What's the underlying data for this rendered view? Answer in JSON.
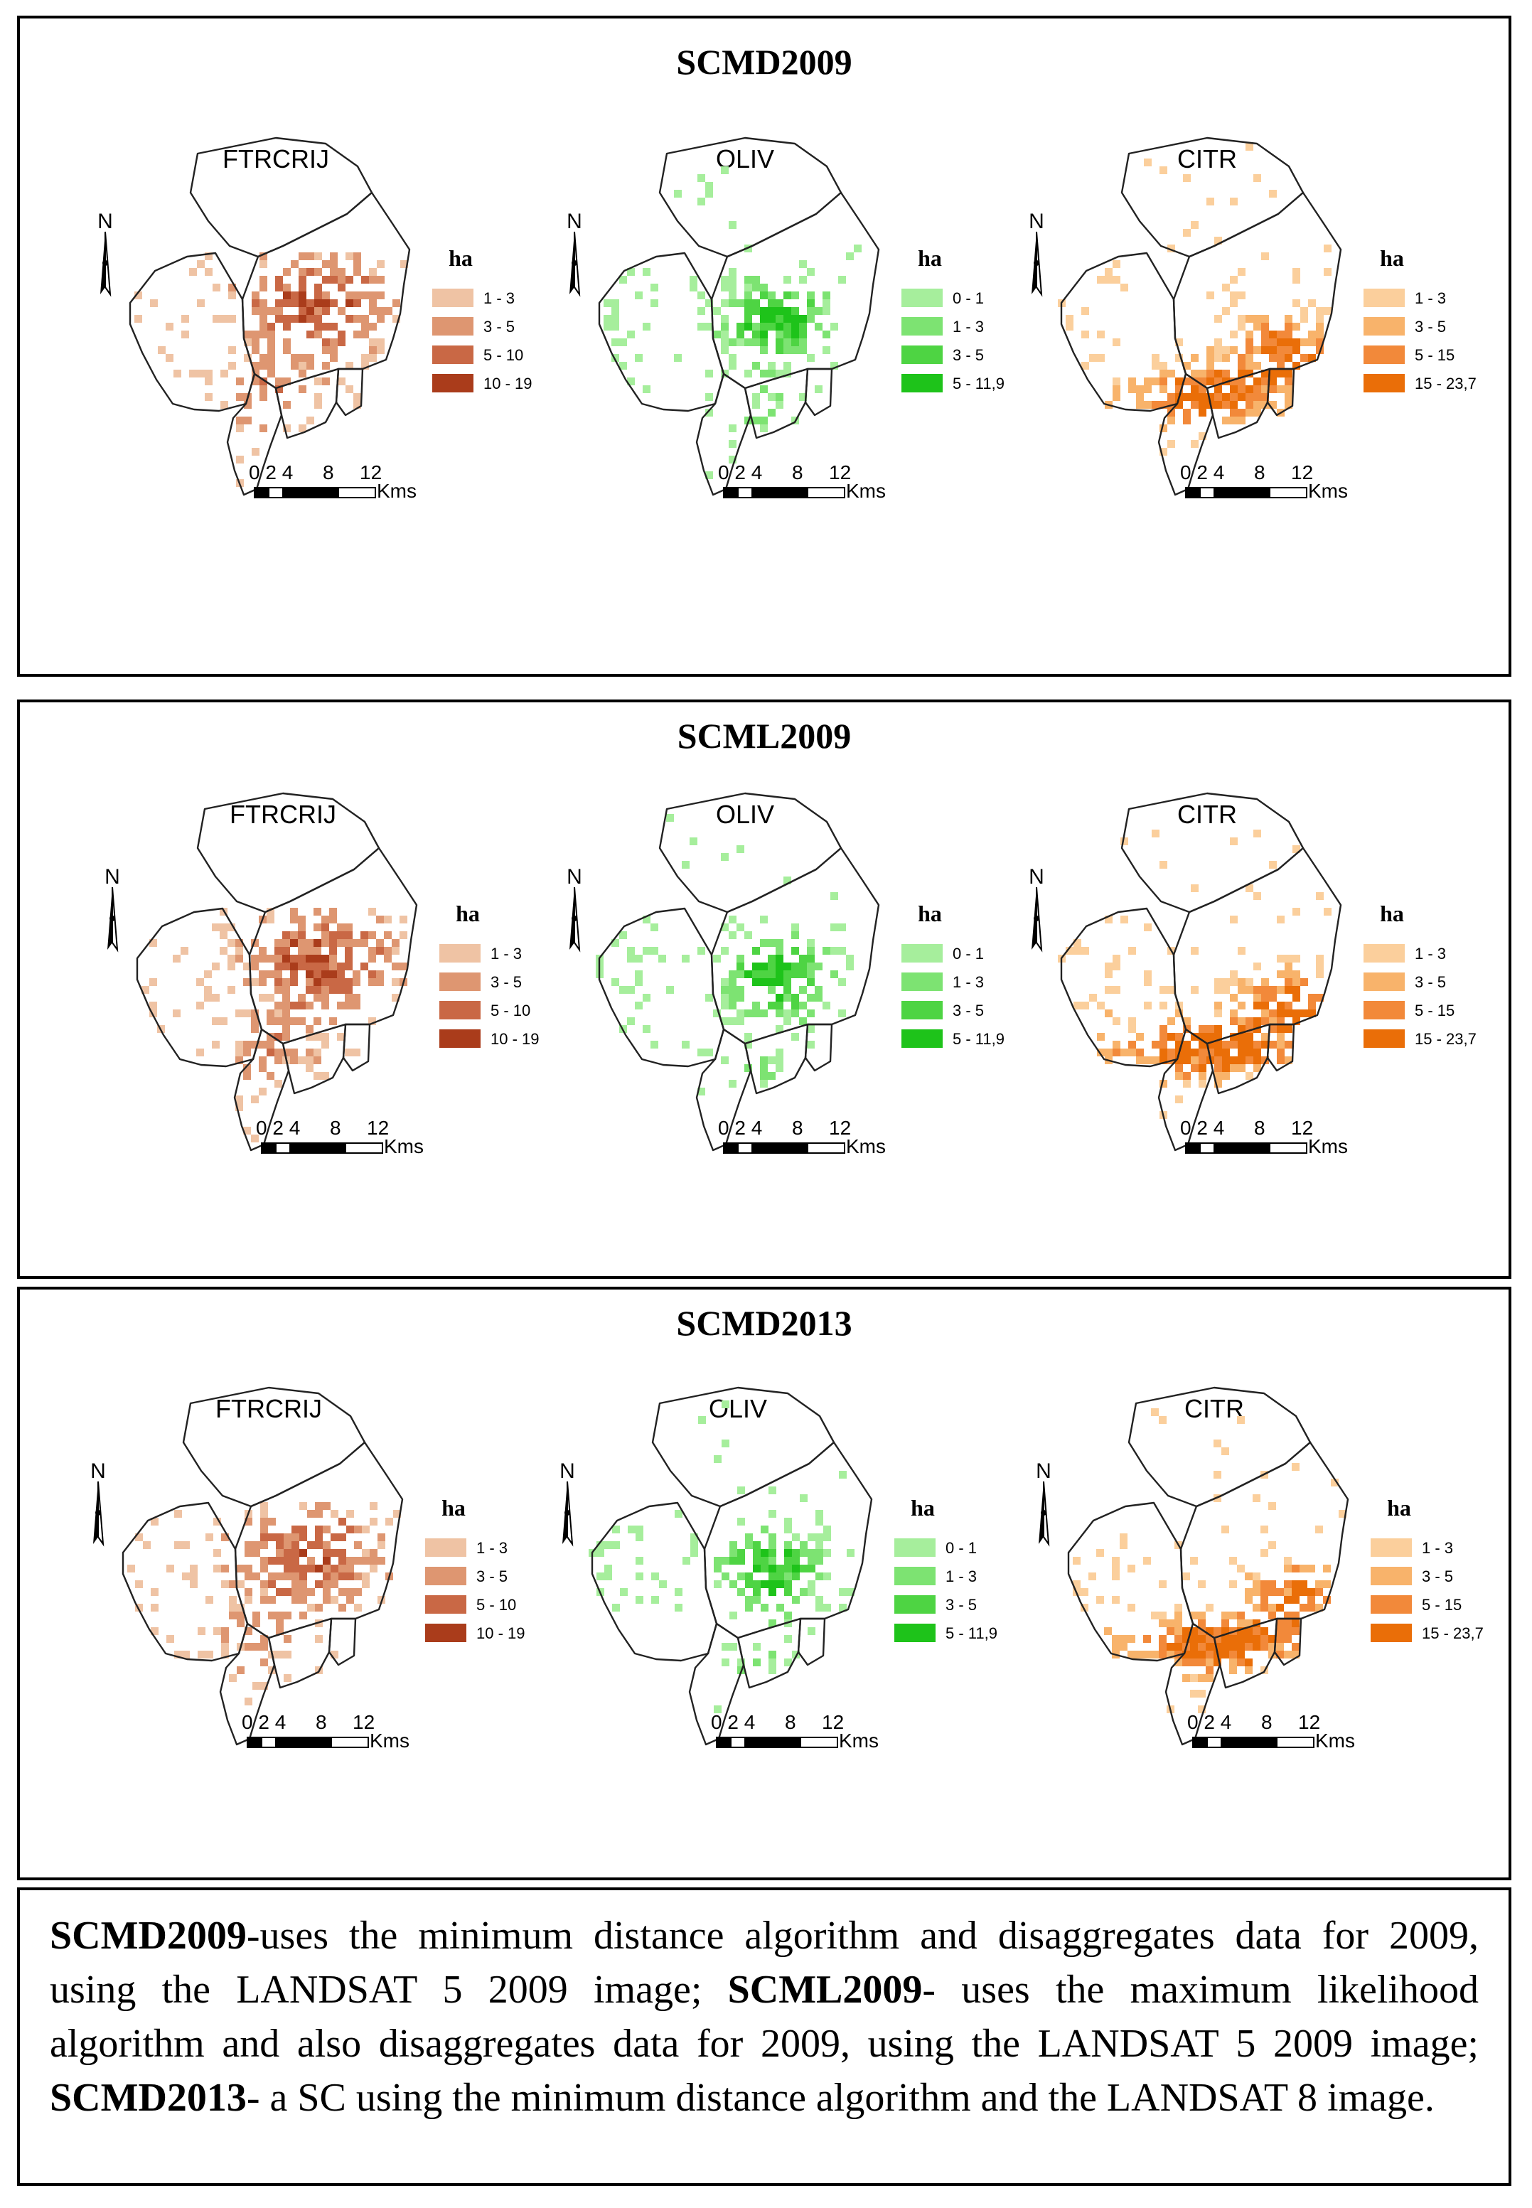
{
  "colors": {
    "FTRCRIJ": [
      "#efc3a4",
      "#de9671",
      "#c96845",
      "#aa3c1b"
    ],
    "OLIV": [
      "#a6ee9c",
      "#7de372",
      "#4ed443",
      "#1ec31a"
    ],
    "CITR": [
      "#fbcf9c",
      "#f8b36b",
      "#f2893a",
      "#ea6e08"
    ]
  },
  "panels": [
    {
      "title": "SCMD2009",
      "maps": [
        {
          "crop": "FTRCRIJ",
          "legend_title": "ha",
          "legend": [
            "1 - 3",
            "3 - 5",
            "5 - 10",
            "10 - 19"
          ],
          "north": "N",
          "scale_labels": [
            "0 2 4",
            "8",
            "12"
          ],
          "scale_unit": "Kms"
        },
        {
          "crop": "OLIV",
          "legend_title": "ha",
          "legend": [
            "0 - 1",
            "1 - 3",
            "3 - 5",
            "5 - 11,9"
          ],
          "north": "N",
          "scale_labels": [
            "0 2 4",
            "8",
            "12"
          ],
          "scale_unit": "Kms"
        },
        {
          "crop": "CITR",
          "legend_title": "ha",
          "legend": [
            "1 - 3",
            "3 - 5",
            "5 - 15",
            "15 - 23,7"
          ],
          "north": "N",
          "scale_labels": [
            "0 2 4",
            "8",
            "12"
          ],
          "scale_unit": "Kms"
        }
      ]
    },
    {
      "title": "SCML2009",
      "maps": [
        {
          "crop": "FTRCRIJ",
          "legend_title": "ha",
          "legend": [
            "1 - 3",
            "3 - 5",
            "5 - 10",
            "10 - 19"
          ],
          "north": "N",
          "scale_labels": [
            "0 2 4",
            "8",
            "12"
          ],
          "scale_unit": "Kms"
        },
        {
          "crop": "OLIV",
          "legend_title": "ha",
          "legend": [
            "0 - 1",
            "1 - 3",
            "3 - 5",
            "5 - 11,9"
          ],
          "north": "N",
          "scale_labels": [
            "0 2 4",
            "8",
            "12"
          ],
          "scale_unit": "Kms"
        },
        {
          "crop": "CITR",
          "legend_title": "ha",
          "legend": [
            "1 - 3",
            "3 - 5",
            "5 - 15",
            "15 - 23,7"
          ],
          "north": "N",
          "scale_labels": [
            "0 2 4",
            "8",
            "12"
          ],
          "scale_unit": "Kms"
        }
      ]
    },
    {
      "title": "SCMD2013",
      "maps": [
        {
          "crop": "FTRCRIJ",
          "legend_title": "ha",
          "legend": [
            "1 - 3",
            "3 - 5",
            "5 - 10",
            "10 - 19"
          ],
          "north": "N",
          "scale_labels": [
            "0 2 4",
            "8",
            "12"
          ],
          "scale_unit": "Kms"
        },
        {
          "crop": "OLIV",
          "legend_title": "ha",
          "legend": [
            "0 - 1",
            "1 - 3",
            "3 - 5",
            "5 - 11,9"
          ],
          "north": "N",
          "scale_labels": [
            "0 2 4",
            "8",
            "12"
          ],
          "scale_unit": "Kms"
        },
        {
          "crop": "CITR",
          "legend_title": "ha",
          "legend": [
            "1 - 3",
            "3 - 5",
            "5 - 15",
            "15 - 23,7"
          ],
          "north": "N",
          "scale_labels": [
            "0 2 4",
            "8",
            "12"
          ],
          "scale_unit": "Kms"
        }
      ]
    }
  ],
  "caption": {
    "t1": "SCMD2009",
    "d1": "-uses the minimum distance algorithm and disaggregates data for 2009, using the LANDSAT 5 2009 image; ",
    "t2": "SCML2009",
    "d2": "- uses the maximum likelihood algorithm and also disaggregates data for 2009, using the LANDSAT 5 2009 image; ",
    "t3": "SCMD2013",
    "d3": "- a SC using the minimum distance algorithm and the LANDSAT 8 image."
  }
}
